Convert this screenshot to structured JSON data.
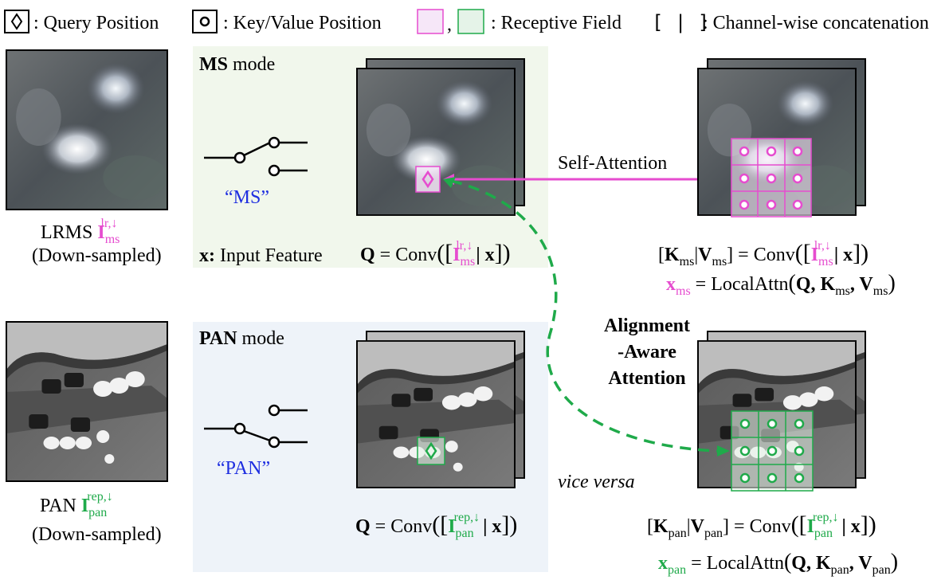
{
  "legend": {
    "query": ": Query Position",
    "keyvalue": ": Key/Value Position",
    "comma": ",",
    "receptive": ": Receptive Field",
    "concat_symbol": "[ | ]",
    "concat": ": Channel-wise concatenation"
  },
  "ms": {
    "mode_bold": "MS",
    "mode_rest": " mode",
    "switch_label": "“MS”",
    "input_feature_bold": "x:",
    "input_feature_rest": " Input Feature",
    "lrms_label": "LRMS ",
    "lrms_var": "I",
    "lrms_sub": "ms",
    "lrms_sup": "lr,↓",
    "downsampled": "(Down-sampled)",
    "q_lhs": "Q",
    "q_eq": " = Conv",
    "q_term": "I",
    "q_sub": "ms",
    "q_sup": "lr,↓",
    "q_x": "| x",
    "self_attention": "Self-Attention",
    "kv_k": "K",
    "kv_ksub": "ms",
    "kv_v": "V",
    "kv_vsub": "ms",
    "kv_eq": " = Conv",
    "x_out": "x",
    "x_out_sub": "ms",
    "x_eq": " = LocalAttn",
    "x_args": "Q, K",
    "x_args_sub1": "ms",
    "x_args_v": ", V",
    "x_args_sub2": "ms"
  },
  "pan": {
    "mode_bold": "PAN",
    "mode_rest": " mode",
    "switch_label": "“PAN”",
    "pan_label": "PAN ",
    "pan_var": "I",
    "pan_sub": "pan",
    "pan_sup": "rep,↓",
    "downsampled": "(Down-sampled)",
    "q_lhs": "Q",
    "q_eq": " = Conv",
    "q_term": "I",
    "q_sub": "pan",
    "q_sup": "rep,↓",
    "q_x": "| x",
    "vice_versa": "vice versa",
    "kv_k": "K",
    "kv_ksub": "pan",
    "kv_v": "V",
    "kv_vsub": "pan",
    "kv_eq": " = Conv",
    "x_out": "x",
    "x_out_sub": "pan",
    "x_eq": " = LocalAttn",
    "x_args": "Q, K",
    "x_args_sub1": "pan",
    "x_args_v": ", V",
    "x_args_sub2": "pan"
  },
  "alignment": {
    "line1": "Alignment",
    "line2": "-Aware",
    "line3": "Attention"
  },
  "colors": {
    "ms_pink": "#e64ccf",
    "pan_green": "#1faa4a",
    "blue_label": "#1f2fe0",
    "ms_panel": "#f1f7ec",
    "pan_panel": "#eef3f9"
  }
}
